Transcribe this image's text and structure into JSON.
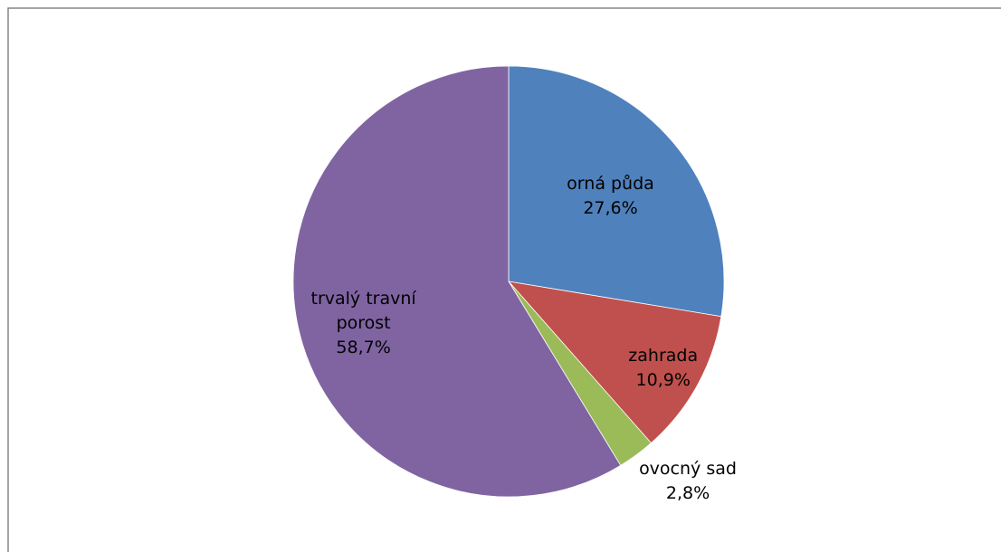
{
  "chart_data": {
    "type": "pie",
    "title": "",
    "slices": [
      {
        "label": "orná půda",
        "value": 27.6,
        "value_label": "27,6%",
        "color": "#4F81BD"
      },
      {
        "label": "zahrada",
        "value": 10.9,
        "value_label": "10,9%",
        "color": "#C0504D"
      },
      {
        "label": "ovocný sad",
        "value": 2.8,
        "value_label": "2,8%",
        "color": "#9BBB59"
      },
      {
        "label": "trvalý travní porost",
        "value": 58.7,
        "value_label": "58,7%",
        "color": "#8064A2"
      }
    ],
    "start_angle": "12 o'clock",
    "direction": "clockwise",
    "legend": "none",
    "border_color": "#868686"
  }
}
